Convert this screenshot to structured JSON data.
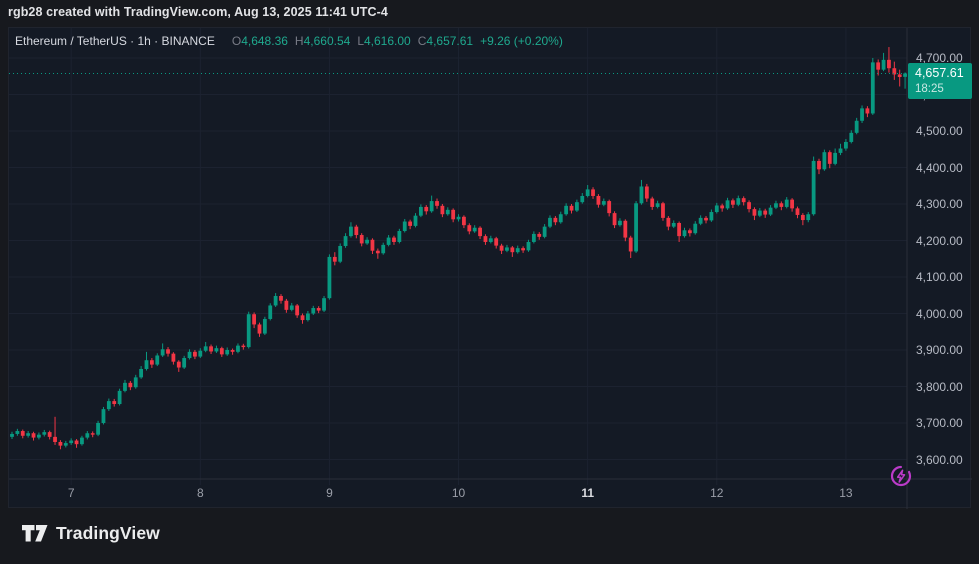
{
  "attribution": "rgb28 created with TradingView.com, Aug 13, 2025 11:41 UTC-4",
  "legend": {
    "symbol": "Ethereum / TetherUS · 1h · BINANCE",
    "ohlc": [
      {
        "label": "O",
        "value": "4,648.36"
      },
      {
        "label": "H",
        "value": "4,660.54"
      },
      {
        "label": "L",
        "value": "4,616.00"
      },
      {
        "label": "C",
        "value": "4,657.61"
      }
    ],
    "change": "+9.26 (+0.20%)"
  },
  "price_label": {
    "price": "4,657.61",
    "countdown": "18:25"
  },
  "footer": {
    "brand": "TradingView"
  },
  "colors": {
    "up": "#089981",
    "down": "#f23645",
    "grid": "#1c2230",
    "axis_border": "#2a2e39",
    "accent_purple": "#bb3bc9",
    "badge_bg": "#089981"
  },
  "chart_data": {
    "type": "candlestick",
    "symbol": "Ethereum / TetherUS",
    "exchange": "BINANCE",
    "interval": "1h",
    "title": "ETH/USDT 1h BINANCE",
    "legend_position": "top-left",
    "grid": true,
    "ylim": [
      3560,
      4760
    ],
    "y_ticks": [
      4700,
      4600,
      4500,
      4400,
      4300,
      4200,
      4100,
      4000,
      3900,
      3800,
      3700,
      3600
    ],
    "x_ticks": [
      {
        "label": "7",
        "t": 11,
        "bold": false
      },
      {
        "label": "8",
        "t": 35,
        "bold": false
      },
      {
        "label": "9",
        "t": 59,
        "bold": false
      },
      {
        "label": "10",
        "t": 83,
        "bold": false
      },
      {
        "label": "11",
        "t": 107,
        "bold": true
      },
      {
        "label": "12",
        "t": 131,
        "bold": false
      },
      {
        "label": "13",
        "t": 155,
        "bold": false
      }
    ],
    "last": {
      "open": 4648.36,
      "high": 4660.54,
      "low": 4616.0,
      "close": 4657.61,
      "change": 9.26,
      "change_pct": 0.2
    },
    "candles": [
      [
        3662,
        3676,
        3656,
        3670
      ],
      [
        3670,
        3684,
        3665,
        3678
      ],
      [
        3678,
        3682,
        3658,
        3665
      ],
      [
        3665,
        3678,
        3660,
        3672
      ],
      [
        3672,
        3676,
        3652,
        3660
      ],
      [
        3660,
        3674,
        3655,
        3668
      ],
      [
        3668,
        3681,
        3663,
        3675
      ],
      [
        3675,
        3679,
        3655,
        3662
      ],
      [
        3662,
        3717,
        3640,
        3648
      ],
      [
        3648,
        3653,
        3628,
        3638
      ],
      [
        3638,
        3651,
        3633,
        3645
      ],
      [
        3645,
        3658,
        3640,
        3652
      ],
      [
        3652,
        3656,
        3632,
        3642
      ],
      [
        3642,
        3665,
        3638,
        3660
      ],
      [
        3660,
        3678,
        3655,
        3672
      ],
      [
        3672,
        3677,
        3661,
        3668
      ],
      [
        3668,
        3706,
        3664,
        3700
      ],
      [
        3700,
        3744,
        3696,
        3738
      ],
      [
        3738,
        3767,
        3733,
        3760
      ],
      [
        3760,
        3766,
        3745,
        3752
      ],
      [
        3752,
        3794,
        3748,
        3788
      ],
      [
        3788,
        3818,
        3784,
        3810
      ],
      [
        3810,
        3815,
        3790,
        3798
      ],
      [
        3798,
        3832,
        3794,
        3825
      ],
      [
        3825,
        3856,
        3821,
        3848
      ],
      [
        3848,
        3895,
        3844,
        3872
      ],
      [
        3872,
        3878,
        3851,
        3860
      ],
      [
        3860,
        3891,
        3856,
        3885
      ],
      [
        3885,
        3918,
        3881,
        3902
      ],
      [
        3902,
        3908,
        3882,
        3890
      ],
      [
        3890,
        3894,
        3860,
        3868
      ],
      [
        3868,
        3872,
        3840,
        3852
      ],
      [
        3852,
        3884,
        3848,
        3878
      ],
      [
        3878,
        3902,
        3874,
        3895
      ],
      [
        3895,
        3900,
        3875,
        3882
      ],
      [
        3882,
        3905,
        3878,
        3898
      ],
      [
        3898,
        3922,
        3894,
        3910
      ],
      [
        3910,
        3915,
        3889,
        3896
      ],
      [
        3896,
        3912,
        3892,
        3905
      ],
      [
        3905,
        3909,
        3881,
        3888
      ],
      [
        3888,
        3907,
        3884,
        3900
      ],
      [
        3900,
        3904,
        3887,
        3895
      ],
      [
        3895,
        3918,
        3891,
        3912
      ],
      [
        3912,
        3917,
        3901,
        3908
      ],
      [
        3908,
        4005,
        3904,
        3998
      ],
      [
        3998,
        4003,
        3960,
        3970
      ],
      [
        3970,
        3975,
        3936,
        3945
      ],
      [
        3945,
        3991,
        3941,
        3985
      ],
      [
        3985,
        4028,
        3981,
        4022
      ],
      [
        4022,
        4056,
        4018,
        4048
      ],
      [
        4048,
        4053,
        4027,
        4035
      ],
      [
        4035,
        4040,
        4002,
        4010
      ],
      [
        4010,
        4029,
        4006,
        4022
      ],
      [
        4022,
        4026,
        3988,
        3995
      ],
      [
        3995,
        4000,
        3972,
        3982
      ],
      [
        3982,
        4007,
        3978,
        4000
      ],
      [
        4000,
        4021,
        3996,
        4015
      ],
      [
        4015,
        4020,
        4001,
        4008
      ],
      [
        4008,
        4048,
        4004,
        4042
      ],
      [
        4042,
        4162,
        4038,
        4155
      ],
      [
        4155,
        4168,
        4132,
        4142
      ],
      [
        4142,
        4192,
        4138,
        4185
      ],
      [
        4185,
        4220,
        4180,
        4212
      ],
      [
        4212,
        4250,
        4208,
        4238
      ],
      [
        4238,
        4243,
        4206,
        4215
      ],
      [
        4215,
        4220,
        4184,
        4192
      ],
      [
        4192,
        4209,
        4188,
        4202
      ],
      [
        4202,
        4206,
        4163,
        4172
      ],
      [
        4172,
        4178,
        4150,
        4165
      ],
      [
        4165,
        4194,
        4161,
        4188
      ],
      [
        4188,
        4215,
        4184,
        4208
      ],
      [
        4208,
        4213,
        4188,
        4196
      ],
      [
        4196,
        4232,
        4192,
        4226
      ],
      [
        4226,
        4259,
        4222,
        4252
      ],
      [
        4252,
        4257,
        4231,
        4240
      ],
      [
        4240,
        4275,
        4236,
        4268
      ],
      [
        4268,
        4299,
        4264,
        4292
      ],
      [
        4292,
        4297,
        4271,
        4280
      ],
      [
        4280,
        4323,
        4276,
        4308
      ],
      [
        4308,
        4315,
        4287,
        4295
      ],
      [
        4295,
        4300,
        4264,
        4272
      ],
      [
        4272,
        4291,
        4268,
        4284
      ],
      [
        4284,
        4288,
        4250,
        4258
      ],
      [
        4258,
        4272,
        4252,
        4265
      ],
      [
        4265,
        4269,
        4234,
        4242
      ],
      [
        4242,
        4247,
        4217,
        4225
      ],
      [
        4225,
        4242,
        4221,
        4235
      ],
      [
        4235,
        4239,
        4204,
        4212
      ],
      [
        4212,
        4217,
        4188,
        4196
      ],
      [
        4196,
        4213,
        4192,
        4206
      ],
      [
        4206,
        4210,
        4178,
        4186
      ],
      [
        4186,
        4191,
        4163,
        4172
      ],
      [
        4172,
        4188,
        4168,
        4181
      ],
      [
        4181,
        4185,
        4155,
        4168
      ],
      [
        4168,
        4186,
        4164,
        4179
      ],
      [
        4179,
        4184,
        4166,
        4173
      ],
      [
        4173,
        4202,
        4169,
        4196
      ],
      [
        4196,
        4225,
        4192,
        4218
      ],
      [
        4218,
        4223,
        4202,
        4210
      ],
      [
        4210,
        4245,
        4206,
        4238
      ],
      [
        4238,
        4269,
        4234,
        4262
      ],
      [
        4262,
        4267,
        4242,
        4250
      ],
      [
        4250,
        4279,
        4246,
        4272
      ],
      [
        4272,
        4302,
        4268,
        4295
      ],
      [
        4295,
        4300,
        4274,
        4282
      ],
      [
        4282,
        4312,
        4278,
        4305
      ],
      [
        4305,
        4330,
        4301,
        4322
      ],
      [
        4322,
        4352,
        4318,
        4340
      ],
      [
        4340,
        4346,
        4314,
        4322
      ],
      [
        4322,
        4327,
        4290,
        4298
      ],
      [
        4298,
        4315,
        4294,
        4308
      ],
      [
        4308,
        4312,
        4266,
        4275
      ],
      [
        4275,
        4280,
        4234,
        4242
      ],
      [
        4242,
        4261,
        4238,
        4254
      ],
      [
        4254,
        4258,
        4198,
        4208
      ],
      [
        4208,
        4213,
        4152,
        4170
      ],
      [
        4170,
        4308,
        4166,
        4302
      ],
      [
        4302,
        4366,
        4298,
        4348
      ],
      [
        4348,
        4355,
        4306,
        4315
      ],
      [
        4315,
        4320,
        4284,
        4292
      ],
      [
        4292,
        4309,
        4288,
        4302
      ],
      [
        4302,
        4306,
        4254,
        4262
      ],
      [
        4262,
        4267,
        4228,
        4238
      ],
      [
        4238,
        4255,
        4234,
        4248
      ],
      [
        4248,
        4252,
        4196,
        4212
      ],
      [
        4212,
        4235,
        4208,
        4228
      ],
      [
        4228,
        4233,
        4211,
        4220
      ],
      [
        4220,
        4253,
        4216,
        4246
      ],
      [
        4246,
        4269,
        4242,
        4262
      ],
      [
        4262,
        4267,
        4247,
        4255
      ],
      [
        4255,
        4285,
        4251,
        4278
      ],
      [
        4278,
        4303,
        4274,
        4296
      ],
      [
        4296,
        4301,
        4279,
        4288
      ],
      [
        4288,
        4317,
        4284,
        4310
      ],
      [
        4310,
        4315,
        4289,
        4298
      ],
      [
        4298,
        4323,
        4294,
        4316
      ],
      [
        4316,
        4321,
        4296,
        4305
      ],
      [
        4305,
        4310,
        4277,
        4286
      ],
      [
        4286,
        4291,
        4256,
        4268
      ],
      [
        4268,
        4289,
        4264,
        4282
      ],
      [
        4282,
        4287,
        4262,
        4271
      ],
      [
        4271,
        4297,
        4267,
        4290
      ],
      [
        4290,
        4309,
        4286,
        4302
      ],
      [
        4302,
        4307,
        4283,
        4292
      ],
      [
        4292,
        4319,
        4288,
        4312
      ],
      [
        4312,
        4316,
        4279,
        4288
      ],
      [
        4288,
        4293,
        4261,
        4270
      ],
      [
        4270,
        4275,
        4242,
        4256
      ],
      [
        4256,
        4278,
        4250,
        4272
      ],
      [
        4272,
        4430,
        4268,
        4418
      ],
      [
        4418,
        4424,
        4382,
        4395
      ],
      [
        4395,
        4449,
        4391,
        4442
      ],
      [
        4442,
        4447,
        4398,
        4410
      ],
      [
        4410,
        4452,
        4406,
        4440
      ],
      [
        4440,
        4465,
        4434,
        4452
      ],
      [
        4452,
        4478,
        4446,
        4470
      ],
      [
        4470,
        4502,
        4466,
        4495
      ],
      [
        4495,
        4536,
        4491,
        4528
      ],
      [
        4528,
        4570,
        4522,
        4562
      ],
      [
        4562,
        4568,
        4538,
        4548
      ],
      [
        4548,
        4700,
        4544,
        4688
      ],
      [
        4688,
        4696,
        4652,
        4668
      ],
      [
        4668,
        4714,
        4664,
        4695
      ],
      [
        4695,
        4730,
        4660,
        4672
      ],
      [
        4672,
        4690,
        4640,
        4655
      ],
      [
        4655,
        4668,
        4622,
        4648
      ],
      [
        4648.36,
        4660.54,
        4616,
        4657.61
      ]
    ]
  }
}
